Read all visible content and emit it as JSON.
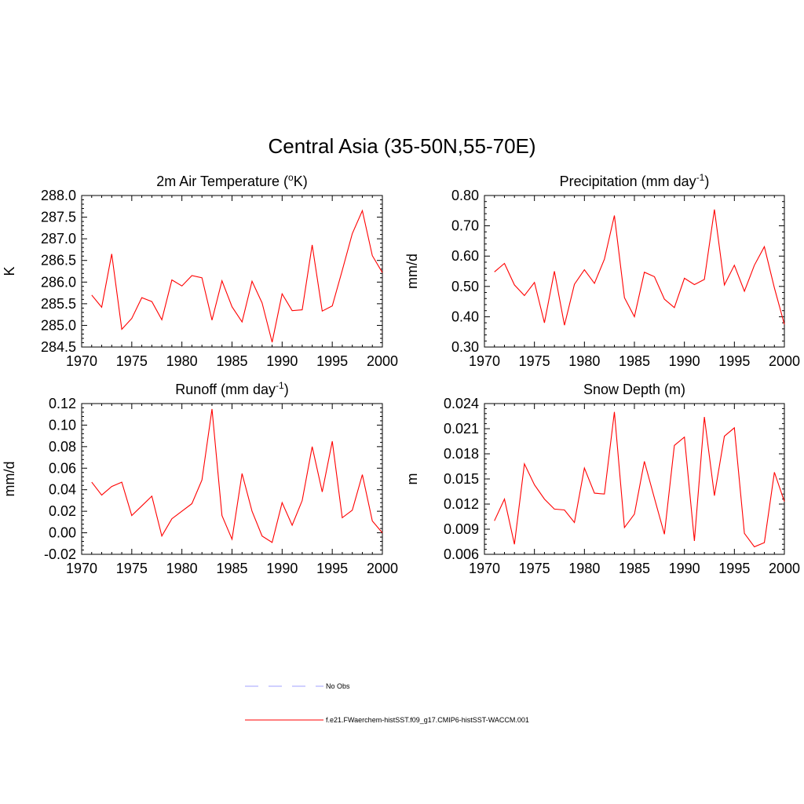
{
  "figure": {
    "title": "Central Asia (35-50N,55-70E)",
    "line_color": "#ff0000",
    "obs_color": "#a0a0ff"
  },
  "legend": {
    "entries": [
      {
        "label": "No Obs",
        "style": "dashed",
        "color": "#a0a0ff"
      },
      {
        "label": "f.e21.FWaerchem-histSST.f09_g17.CMIP6-histSST-WACCM.001",
        "style": "solid",
        "color": "#ff0000"
      }
    ]
  },
  "chart_data": [
    {
      "type": "line",
      "title": "2m Air Temperature (°K)",
      "title_parts": {
        "pre": "2m Air Temperature (",
        "sup": "o",
        "post": "K)"
      },
      "ylabel": "K",
      "xlabel": "",
      "xlim": [
        1970,
        2000
      ],
      "ylim": [
        284.5,
        288.0
      ],
      "xticks": [
        1970,
        1975,
        1980,
        1985,
        1990,
        1995,
        2000
      ],
      "xtick_labels": [
        "1970",
        "1975",
        "1980",
        "1985",
        "1990",
        "1995",
        "2000"
      ],
      "yticks": [
        284.5,
        285.0,
        285.5,
        286.0,
        286.5,
        287.0,
        287.5,
        288.0
      ],
      "ytick_labels": [
        "284.5",
        "285.0",
        "285.5",
        "286.0",
        "286.5",
        "287.0",
        "287.5",
        "288.0"
      ],
      "x": [
        1971,
        1972,
        1973,
        1974,
        1975,
        1976,
        1977,
        1978,
        1979,
        1980,
        1981,
        1982,
        1983,
        1984,
        1985,
        1986,
        1987,
        1988,
        1989,
        1990,
        1991,
        1992,
        1993,
        1994,
        1995,
        1996,
        1997,
        1998,
        1999,
        2000
      ],
      "series": [
        {
          "values": [
            285.7,
            285.42,
            286.65,
            284.91,
            285.16,
            285.64,
            285.55,
            285.13,
            286.05,
            285.91,
            286.15,
            286.1,
            285.12,
            286.03,
            285.43,
            285.08,
            286.02,
            285.52,
            284.61,
            285.73,
            285.34,
            285.36,
            286.86,
            285.33,
            285.45,
            286.27,
            287.12,
            287.65,
            286.61,
            286.22
          ]
        }
      ]
    },
    {
      "type": "line",
      "title": "Precipitation (mm day-1)",
      "title_parts": {
        "pre": "Precipitation (mm day",
        "sup": "-1",
        "post": ")"
      },
      "ylabel": "mm/d",
      "xlabel": "",
      "xlim": [
        1970,
        2000
      ],
      "ylim": [
        0.3,
        0.8
      ],
      "xticks": [
        1970,
        1975,
        1980,
        1985,
        1990,
        1995,
        2000
      ],
      "xtick_labels": [
        "1970",
        "1975",
        "1980",
        "1985",
        "1990",
        "1995",
        "2000"
      ],
      "yticks": [
        0.3,
        0.4,
        0.5,
        0.6,
        0.7,
        0.8
      ],
      "ytick_labels": [
        "0.30",
        "0.40",
        "0.50",
        "0.60",
        "0.70",
        "0.80"
      ],
      "x": [
        1971,
        1972,
        1973,
        1974,
        1975,
        1976,
        1977,
        1978,
        1979,
        1980,
        1981,
        1982,
        1983,
        1984,
        1985,
        1986,
        1987,
        1988,
        1989,
        1990,
        1991,
        1992,
        1993,
        1994,
        1995,
        1996,
        1997,
        1998,
        1999,
        2000
      ],
      "series": [
        {
          "values": [
            0.548,
            0.576,
            0.505,
            0.47,
            0.513,
            0.38,
            0.55,
            0.372,
            0.507,
            0.555,
            0.51,
            0.59,
            0.734,
            0.463,
            0.4,
            0.547,
            0.532,
            0.458,
            0.43,
            0.527,
            0.506,
            0.523,
            0.754,
            0.505,
            0.57,
            0.484,
            0.57,
            0.631,
            0.495,
            0.375
          ]
        }
      ]
    },
    {
      "type": "line",
      "title": "Runoff (mm day-1)",
      "title_parts": {
        "pre": "Runoff (mm day",
        "sup": "-1",
        "post": ")"
      },
      "ylabel": "mm/d",
      "xlabel": "",
      "xlim": [
        1970,
        2000
      ],
      "ylim": [
        -0.02,
        0.12
      ],
      "xticks": [
        1970,
        1975,
        1980,
        1985,
        1990,
        1995,
        2000
      ],
      "xtick_labels": [
        "1970",
        "1975",
        "1980",
        "1985",
        "1990",
        "1995",
        "2000"
      ],
      "yticks": [
        -0.02,
        0.0,
        0.02,
        0.04,
        0.06,
        0.08,
        0.1,
        0.12
      ],
      "ytick_labels": [
        "-0.02",
        "0.00",
        "0.02",
        "0.04",
        "0.06",
        "0.08",
        "0.10",
        "0.12"
      ],
      "x": [
        1971,
        1972,
        1973,
        1974,
        1975,
        1976,
        1977,
        1978,
        1979,
        1980,
        1981,
        1982,
        1983,
        1984,
        1985,
        1986,
        1987,
        1988,
        1989,
        1990,
        1991,
        1992,
        1993,
        1994,
        1995,
        1996,
        1997,
        1998,
        1999,
        2000
      ],
      "series": [
        {
          "values": [
            0.047,
            0.035,
            0.043,
            0.047,
            0.016,
            0.025,
            0.034,
            -0.003,
            0.013,
            0.02,
            0.027,
            0.049,
            0.115,
            0.016,
            -0.006,
            0.055,
            0.02,
            -0.003,
            -0.009,
            0.028,
            0.007,
            0.03,
            0.08,
            0.038,
            0.085,
            0.014,
            0.021,
            0.054,
            0.011,
            0.0
          ]
        }
      ]
    },
    {
      "type": "line",
      "title": "Snow Depth (m)",
      "title_parts": {
        "pre": "Snow Depth (m)",
        "sup": "",
        "post": ""
      },
      "ylabel": "m",
      "xlabel": "",
      "xlim": [
        1970,
        2000
      ],
      "ylim": [
        0.006,
        0.024
      ],
      "xticks": [
        1970,
        1975,
        1980,
        1985,
        1990,
        1995,
        2000
      ],
      "xtick_labels": [
        "1970",
        "1975",
        "1980",
        "1985",
        "1990",
        "1995",
        "2000"
      ],
      "yticks": [
        0.006,
        0.009,
        0.012,
        0.015,
        0.018,
        0.021,
        0.024
      ],
      "ytick_labels": [
        "0.006",
        "0.009",
        "0.012",
        "0.015",
        "0.018",
        "0.021",
        "0.024"
      ],
      "x": [
        1971,
        1972,
        1973,
        1974,
        1975,
        1976,
        1977,
        1978,
        1979,
        1980,
        1981,
        1982,
        1983,
        1984,
        1985,
        1986,
        1987,
        1988,
        1989,
        1990,
        1991,
        1992,
        1993,
        1994,
        1995,
        1996,
        1997,
        1998,
        1999,
        2000
      ],
      "series": [
        {
          "values": [
            0.01,
            0.0126,
            0.0072,
            0.0168,
            0.0143,
            0.0126,
            0.0114,
            0.0113,
            0.0098,
            0.0163,
            0.0133,
            0.0132,
            0.023,
            0.0092,
            0.0108,
            0.0171,
            0.0127,
            0.0084,
            0.019,
            0.02,
            0.0076,
            0.0224,
            0.013,
            0.0201,
            0.0211,
            0.0085,
            0.0069,
            0.0074,
            0.0158,
            0.0123
          ]
        }
      ]
    }
  ]
}
